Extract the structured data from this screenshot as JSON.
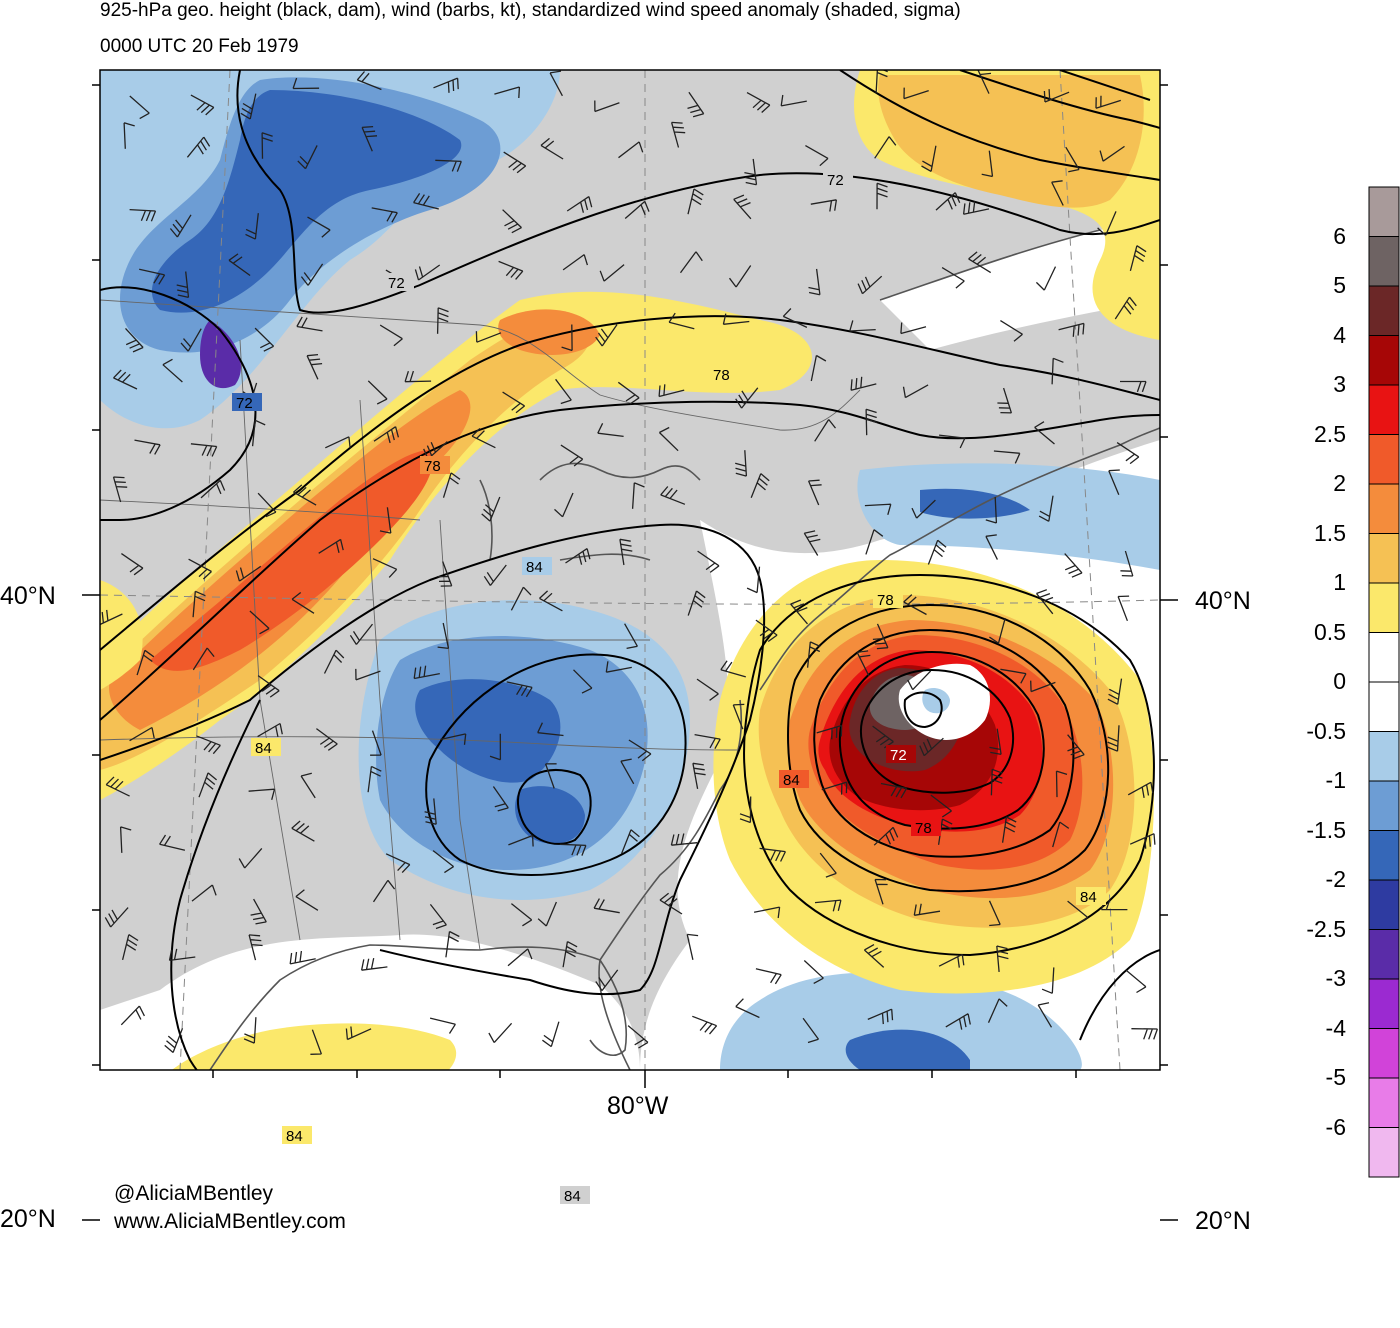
{
  "title": "925-hPa geo. height (black, dam), wind (barbs, kt), standardized wind speed anomaly (shaded, sigma)",
  "subtitle": "0000 UTC 20 Feb 1979",
  "lat_labels": [
    "40°N",
    "20°N"
  ],
  "lon_labels": [
    "80°W"
  ],
  "contour_labels": [
    "72",
    "72",
    "72",
    "78",
    "78",
    "78",
    "78",
    "84",
    "84",
    "84",
    "84",
    "84",
    "84",
    "72"
  ],
  "colorbar": {
    "levels": [
      "6",
      "5",
      "4",
      "3",
      "2.5",
      "2",
      "1.5",
      "1",
      "0.5",
      "0",
      "-0.5",
      "-1",
      "-1.5",
      "-2",
      "-2.5",
      "-3",
      "-4",
      "-5",
      "-6"
    ],
    "colors": [
      "#a89a9a",
      "#6e6363",
      "#6b2727",
      "#a60606",
      "#e81313",
      "#f05a2a",
      "#f48c3c",
      "#f5c154",
      "#fbe86b",
      "#ffffff",
      "#ffffff",
      "#a8cce8",
      "#6d9dd4",
      "#3567b8",
      "#2e3ba1",
      "#5a2ca8",
      "#9b2ad1",
      "#d143d9",
      "#e87ce8",
      "#f0b8ef"
    ]
  },
  "colors": {
    "land": "#d0d0d0",
    "ocean": "#ffffff",
    "contour": "#000000",
    "coastline": "#555555"
  },
  "credits": [
    "@AliciaMBentley",
    "www.AliciaMBentley.com"
  ]
}
